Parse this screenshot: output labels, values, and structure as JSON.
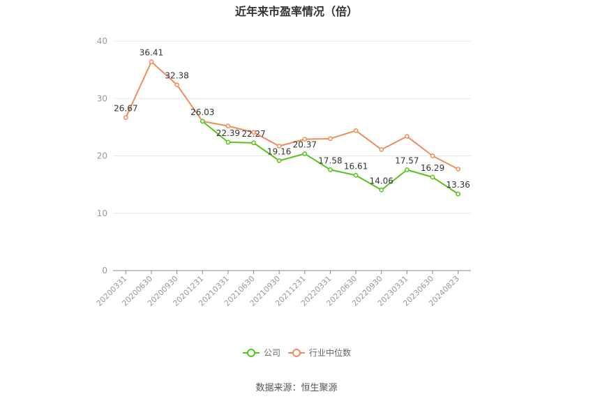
{
  "chart_data": {
    "type": "line",
    "title": "近年来市盈率情况（倍）",
    "source": "数据来源：恒生聚源",
    "categories": [
      "20200331",
      "20200630",
      "20200930",
      "20201231",
      "20210331",
      "20210630",
      "20210930",
      "20211231",
      "20220331",
      "20220630",
      "20220930",
      "20230331",
      "20230630",
      "20240823"
    ],
    "ylim": [
      0,
      40
    ],
    "yticks": [
      0,
      10,
      20,
      30,
      40
    ],
    "grid": true,
    "legend_position": "bottom-center",
    "series": [
      {
        "name": "公司",
        "color": "#52c41a",
        "values": [
          null,
          null,
          null,
          26.03,
          22.39,
          22.27,
          19.16,
          20.37,
          17.58,
          16.61,
          14.06,
          17.57,
          16.29,
          13.36
        ]
      },
      {
        "name": "行业中位数",
        "color": "#f08c5a",
        "values": [
          26.67,
          36.41,
          32.38,
          26.03,
          25.2,
          24.1,
          21.7,
          22.9,
          23.0,
          24.4,
          21.1,
          23.4,
          20.0,
          17.7
        ]
      }
    ],
    "data_labels": [
      {
        "series": 1,
        "index": 0,
        "text": "26.67"
      },
      {
        "series": 1,
        "index": 1,
        "text": "36.41"
      },
      {
        "series": 1,
        "index": 2,
        "text": "32.38"
      },
      {
        "series": 0,
        "index": 3,
        "text": "26.03"
      },
      {
        "series": 0,
        "index": 4,
        "text": "22.39"
      },
      {
        "series": 0,
        "index": 5,
        "text": "22.27"
      },
      {
        "series": 0,
        "index": 6,
        "text": "19.16"
      },
      {
        "series": 0,
        "index": 7,
        "text": "20.37"
      },
      {
        "series": 0,
        "index": 8,
        "text": "17.58"
      },
      {
        "series": 0,
        "index": 9,
        "text": "16.61"
      },
      {
        "series": 0,
        "index": 10,
        "text": "14.06"
      },
      {
        "series": 0,
        "index": 11,
        "text": "17.57"
      },
      {
        "series": 0,
        "index": 12,
        "text": "16.29"
      },
      {
        "series": 0,
        "index": 13,
        "text": "13.36"
      }
    ]
  }
}
